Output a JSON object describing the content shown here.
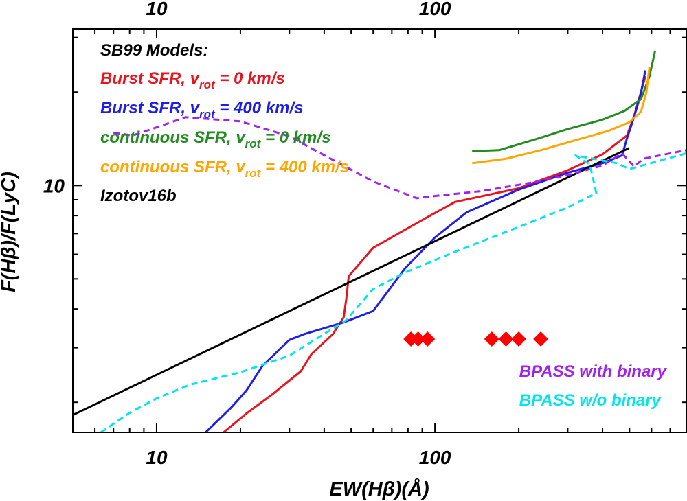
{
  "chart_data": {
    "type": "line",
    "x_scale": "log",
    "y_scale": "log",
    "xlim": [
      5,
      800
    ],
    "ylim": [
      1.6,
      32
    ],
    "xlabel": "EW(Hβ)(Å)",
    "ylabel": "F(Hβ)/F(LyC)",
    "x_tick_labels": [
      {
        "value": 10,
        "text": "10"
      },
      {
        "value": 100,
        "text": "100"
      }
    ],
    "top_tick_labels": [
      {
        "value": 10,
        "text": "10"
      },
      {
        "value": 100,
        "text": "100"
      }
    ],
    "y_tick_labels": [
      {
        "value": 10,
        "text": "10"
      }
    ],
    "legend_header": "SB99 Models:",
    "legend_position": "top-left",
    "series": [
      {
        "name": "Burst SFR, v_rot = 0 km/s",
        "legend_parts": [
          "Burst SFR, v",
          "rot",
          " = 0 km/s"
        ],
        "color": "#e8141e",
        "dash": "solid",
        "points": [
          [
            17.4,
            1.6
          ],
          [
            21,
            1.84
          ],
          [
            26,
            2.12
          ],
          [
            33,
            2.52
          ],
          [
            36,
            2.86
          ],
          [
            43,
            3.32
          ],
          [
            47,
            3.76
          ],
          [
            48,
            4.3
          ],
          [
            49,
            5.1
          ],
          [
            60,
            6.3
          ],
          [
            95,
            7.95
          ],
          [
            118,
            8.85
          ],
          [
            200,
            9.8
          ],
          [
            300,
            11.2
          ],
          [
            400,
            12.6
          ],
          [
            490,
            14.5
          ],
          [
            520,
            16.8
          ],
          [
            548,
            19.8
          ],
          [
            570,
            22.5
          ]
        ]
      },
      {
        "name": "Burst SFR, v_rot = 400 km/s",
        "legend_parts": [
          "Burst SFR, v",
          "rot",
          " = 400 km/s"
        ],
        "color": "#1e1ee8",
        "dash": "solid",
        "points": [
          [
            15,
            1.6
          ],
          [
            18.5,
            1.92
          ],
          [
            21,
            2.18
          ],
          [
            24,
            2.62
          ],
          [
            30,
            3.18
          ],
          [
            34,
            3.32
          ],
          [
            47,
            3.62
          ],
          [
            60,
            3.94
          ],
          [
            78,
            5.4
          ],
          [
            100,
            6.8
          ],
          [
            130,
            8.2
          ],
          [
            200,
            9.7
          ],
          [
            300,
            11.0
          ],
          [
            400,
            11.8
          ],
          [
            470,
            12.5
          ],
          [
            490,
            14.2
          ],
          [
            520,
            16.7
          ],
          [
            548,
            19.6
          ],
          [
            570,
            23.5
          ]
        ]
      },
      {
        "name": "continuous SFR, v_rot = 0 km/s",
        "legend_parts": [
          "continuous SFR, v",
          "rot",
          " = 0 km/s"
        ],
        "color": "#228b22",
        "dash": "solid",
        "points": [
          [
            136,
            12.9
          ],
          [
            170,
            13.0
          ],
          [
            230,
            14.1
          ],
          [
            300,
            15.2
          ],
          [
            400,
            16.3
          ],
          [
            480,
            17.4
          ],
          [
            550,
            19.0
          ],
          [
            590,
            22.5
          ],
          [
            618,
            27.2
          ]
        ]
      },
      {
        "name": "continuous SFR, v_rot = 400 km/s",
        "legend_parts": [
          "continuous SFR, v",
          "rot",
          " = 400 km/s"
        ],
        "color": "#ffa500",
        "dash": "solid",
        "points": [
          [
            136,
            11.8
          ],
          [
            180,
            12.2
          ],
          [
            240,
            13.0
          ],
          [
            320,
            14.0
          ],
          [
            420,
            15.0
          ],
          [
            500,
            16.0
          ],
          [
            550,
            17.3
          ],
          [
            575,
            20.0
          ],
          [
            590,
            24.2
          ]
        ]
      },
      {
        "name": "Izotov16b",
        "legend_parts": [
          "Izotov16b"
        ],
        "color": "#000000",
        "dash": "solid",
        "points": [
          [
            5,
            1.82
          ],
          [
            498,
            13.2
          ]
        ]
      },
      {
        "name": "BPASS with binary",
        "legend_parts": [
          "BPASS with binary"
        ],
        "color": "#a020f0",
        "dash": "dash",
        "points": [
          [
            7,
            14.8
          ],
          [
            8.2,
            14.5
          ],
          [
            10,
            15.4
          ],
          [
            12.7,
            16.6
          ],
          [
            20,
            16.1
          ],
          [
            30,
            14.4
          ],
          [
            37,
            13.0
          ],
          [
            60,
            10.3
          ],
          [
            86,
            9.1
          ],
          [
            100,
            9.25
          ],
          [
            148,
            9.6
          ],
          [
            220,
            10.2
          ],
          [
            300,
            10.8
          ],
          [
            400,
            11.6
          ],
          [
            470,
            12.7
          ],
          [
            520,
            11.5
          ],
          [
            560,
            12.2
          ],
          [
            800,
            13.0
          ]
        ]
      },
      {
        "name": "BPASS w/o binary",
        "legend_parts": [
          "BPASS w/o binary"
        ],
        "color": "#00e5ee",
        "dash": "dash",
        "points": [
          [
            6.3,
            1.6
          ],
          [
            8,
            1.85
          ],
          [
            10,
            2.06
          ],
          [
            13.2,
            2.28
          ],
          [
            20,
            2.5
          ],
          [
            30,
            2.83
          ],
          [
            48,
            3.68
          ],
          [
            60,
            4.64
          ],
          [
            78,
            5.24
          ],
          [
            120,
            6.15
          ],
          [
            200,
            7.35
          ],
          [
            300,
            8.5
          ],
          [
            380,
            9.45
          ],
          [
            360,
            11.7
          ],
          [
            320,
            12.5
          ],
          [
            450,
            11.8
          ],
          [
            500,
            11.3
          ],
          [
            800,
            12.7
          ]
        ]
      }
    ],
    "markers": {
      "shape": "diamond",
      "color": "#ff0000",
      "points": [
        [
          82,
          3.2
        ],
        [
          87,
          3.2
        ],
        [
          94,
          3.2
        ],
        [
          160,
          3.2
        ],
        [
          180,
          3.2
        ],
        [
          200,
          3.2
        ],
        [
          240,
          3.2
        ]
      ]
    }
  }
}
